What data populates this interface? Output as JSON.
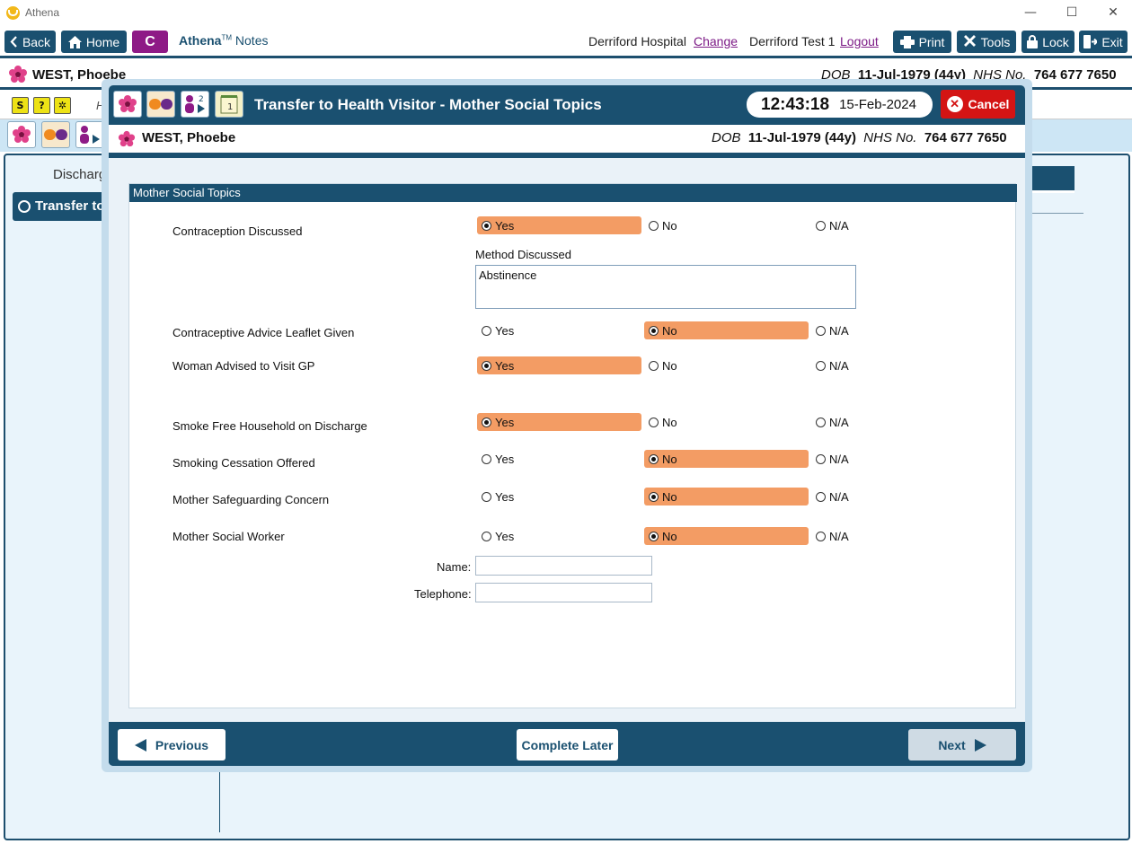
{
  "window": {
    "app_title": "Athena",
    "minimize": "—",
    "maximize": "☐",
    "close": "✕"
  },
  "toolbar": {
    "back": "Back",
    "home": "Home",
    "c_button": "C",
    "brand": "Athena",
    "brand_tm": "TM",
    "brand_suffix": "Notes",
    "hospital": "Derriford Hospital",
    "change": "Change",
    "user": "Derriford Test 1",
    "logout": "Logout",
    "print": "Print",
    "tools": "Tools",
    "lock": "Lock",
    "exit": "Exit"
  },
  "patient": {
    "name": "WEST, Phoebe",
    "dob_label": "DOB",
    "dob": "11-Jul-1979 (44y)",
    "nhs_label": "NHS No.",
    "nhs": "764 677 7650"
  },
  "background": {
    "row1_letter": "H",
    "left_label": "Discharg",
    "sidebar_item": "Transfer to"
  },
  "modal": {
    "title": "Transfer to Health Visitor - Mother Social Topics",
    "time": "12:43:18",
    "date": "15-Feb-2024",
    "cancel": "Cancel",
    "icon_badge_2": "2",
    "icon_badge_1": "1"
  },
  "section": {
    "title": "Mother Social Topics"
  },
  "options": {
    "yes": "Yes",
    "no": "No",
    "na": "N/A"
  },
  "questions": [
    {
      "label": "Contraception Discussed",
      "selected": "Yes"
    },
    {
      "label": "Contraceptive Advice Leaflet Given",
      "selected": "No"
    },
    {
      "label": "Woman Advised to Visit GP",
      "selected": "Yes"
    },
    {
      "label": "Smoke Free Household on Discharge",
      "selected": "Yes"
    },
    {
      "label": "Smoking Cessation Offered",
      "selected": "No"
    },
    {
      "label": "Mother Safeguarding Concern",
      "selected": "No"
    },
    {
      "label": "Mother Social Worker",
      "selected": "No"
    }
  ],
  "method": {
    "label": "Method Discussed",
    "value": "Abstinence"
  },
  "social_worker": {
    "name_label": "Name:",
    "name_value": "",
    "phone_label": "Telephone:",
    "phone_value": ""
  },
  "footer": {
    "previous": "Previous",
    "complete_later": "Complete Later",
    "next": "Next"
  },
  "colors": {
    "primary": "#1a5070",
    "selected": "#f39c64",
    "cancel": "#d41414",
    "c_button": "#8e1a86"
  }
}
